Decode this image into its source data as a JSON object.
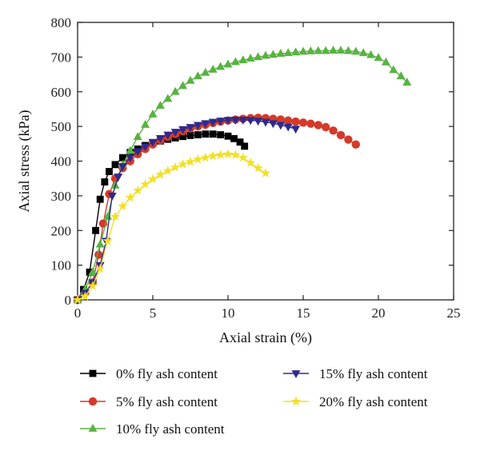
{
  "chart_data": {
    "type": "line",
    "xlabel": "Axial strain (%)",
    "ylabel": "Axial stress (kPa)",
    "xlim": [
      0,
      25
    ],
    "ylim": [
      0,
      800
    ],
    "xticks": [
      0,
      5,
      10,
      15,
      20,
      25
    ],
    "yticks": [
      0,
      100,
      200,
      300,
      400,
      500,
      600,
      700,
      800
    ],
    "grid": false,
    "legend": "bottom, two columns",
    "series": [
      {
        "name": "0% fly ash content",
        "color": "#000000",
        "marker": "square",
        "x": [
          0,
          0.4,
          0.8,
          1.2,
          1.5,
          1.8,
          2.1,
          2.5,
          3.0,
          3.5,
          4.0,
          4.5,
          5.0,
          5.5,
          6.0,
          6.5,
          7.0,
          7.5,
          8.0,
          8.5,
          9.0,
          9.5,
          10.0,
          10.4,
          10.8,
          11.1
        ],
        "y": [
          0,
          30,
          80,
          200,
          290,
          340,
          370,
          390,
          410,
          425,
          435,
          445,
          452,
          458,
          463,
          467,
          471,
          474,
          476,
          478,
          478,
          476,
          472,
          465,
          455,
          443
        ]
      },
      {
        "name": "5% fly ash content",
        "color": "#d43a2a",
        "marker": "circle",
        "x": [
          0,
          0.5,
          1.0,
          1.4,
          1.7,
          2.1,
          2.5,
          3.0,
          3.5,
          4.0,
          4.5,
          5.0,
          5.5,
          6.0,
          6.5,
          7.0,
          7.5,
          8.0,
          8.5,
          9.0,
          9.5,
          10.0,
          10.5,
          11.0,
          11.5,
          12.0,
          12.5,
          13.0,
          13.5,
          14.0,
          14.5,
          15.0,
          15.5,
          16.0,
          16.5,
          17.0,
          17.5,
          18.0,
          18.5
        ],
        "y": [
          0,
          20,
          50,
          130,
          220,
          305,
          350,
          380,
          400,
          420,
          435,
          448,
          460,
          470,
          478,
          486,
          494,
          500,
          505,
          510,
          514,
          517,
          520,
          522,
          524,
          525,
          524,
          522,
          520,
          517,
          514,
          511,
          508,
          504,
          498,
          488,
          475,
          462,
          448
        ]
      },
      {
        "name": "10% fly ash content",
        "color": "#58b342",
        "marker": "triangle",
        "x": [
          0,
          0.5,
          1.0,
          1.5,
          2.0,
          2.5,
          3.0,
          3.5,
          4.0,
          4.5,
          5.0,
          5.5,
          6.0,
          6.5,
          7.0,
          7.5,
          8.0,
          8.5,
          9.0,
          9.5,
          10.0,
          10.5,
          11.0,
          11.5,
          12.0,
          12.5,
          13.0,
          13.5,
          14.0,
          14.5,
          15.0,
          15.5,
          16.0,
          16.5,
          17.0,
          17.5,
          18.0,
          18.5,
          19.0,
          19.5,
          20.0,
          20.5,
          21.0,
          21.5,
          21.9
        ],
        "y": [
          0,
          30,
          80,
          160,
          240,
          330,
          390,
          430,
          470,
          505,
          535,
          560,
          580,
          600,
          617,
          632,
          645,
          655,
          664,
          672,
          679,
          686,
          691,
          696,
          700,
          704,
          707,
          710,
          712,
          714,
          716,
          717,
          718,
          718,
          719,
          719,
          718,
          716,
          712,
          706,
          698,
          685,
          663,
          645,
          627
        ]
      },
      {
        "name": "15% fly ash content",
        "color": "#2d2a8c",
        "marker": "triangle-down",
        "x": [
          0,
          0.5,
          1.0,
          1.5,
          1.9,
          2.3,
          2.7,
          3.0,
          3.5,
          4.0,
          4.5,
          5.0,
          5.5,
          6.0,
          6.5,
          7.0,
          7.5,
          8.0,
          8.5,
          9.0,
          9.5,
          10.0,
          10.5,
          11.0,
          11.5,
          12.0,
          12.5,
          13.0,
          13.5,
          14.0,
          14.5
        ],
        "y": [
          0,
          20,
          50,
          100,
          170,
          300,
          355,
          385,
          410,
          428,
          442,
          455,
          466,
          476,
          484,
          492,
          498,
          504,
          509,
          513,
          516,
          518,
          519,
          519,
          518,
          516,
          513,
          509,
          504,
          499,
          493
        ]
      },
      {
        "name": "20% fly ash content",
        "color": "#f2e025",
        "marker": "star",
        "x": [
          0,
          0.5,
          1.0,
          1.5,
          2.0,
          2.5,
          3.0,
          3.5,
          4.0,
          4.5,
          5.0,
          5.5,
          6.0,
          6.5,
          7.0,
          7.5,
          8.0,
          8.5,
          9.0,
          9.5,
          10.0,
          10.5,
          11.0,
          11.5,
          12.0,
          12.5
        ],
        "y": [
          0,
          10,
          40,
          90,
          170,
          240,
          270,
          295,
          315,
          333,
          348,
          361,
          372,
          382,
          391,
          398,
          405,
          410,
          415,
          418,
          420,
          418,
          410,
          395,
          380,
          365
        ]
      }
    ]
  }
}
